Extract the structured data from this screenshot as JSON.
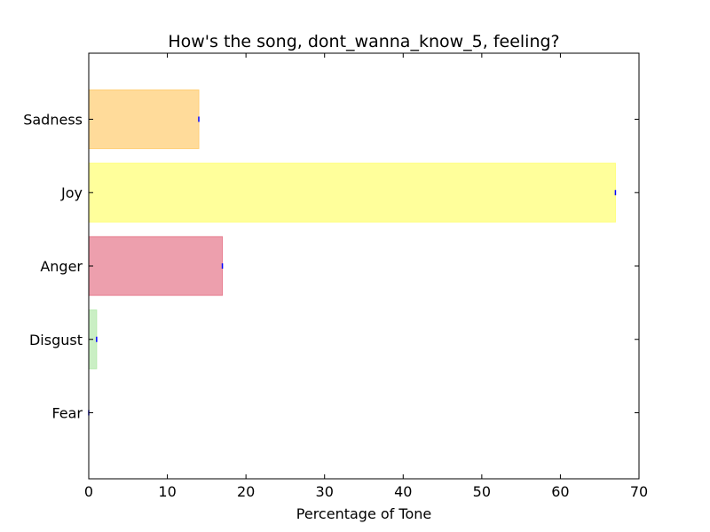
{
  "chart_data": {
    "type": "bar",
    "orientation": "horizontal",
    "title": "How's the song, dont_wanna_know_5, feeling?",
    "xlabel": "Percentage of Tone",
    "ylabel": "",
    "xlim": [
      0,
      70
    ],
    "xticks": [
      0,
      10,
      20,
      30,
      40,
      50,
      60,
      70
    ],
    "categories": [
      "Fear",
      "Disgust",
      "Anger",
      "Joy",
      "Sadness"
    ],
    "values": [
      0,
      1,
      17,
      67,
      14
    ],
    "colors": [
      "#b3a7d8",
      "#b8eab0",
      "#e77f91",
      "#ffff7a",
      "#ffcf78"
    ],
    "error_marker_color": "#0000ff",
    "grid": false,
    "legend": "none"
  }
}
